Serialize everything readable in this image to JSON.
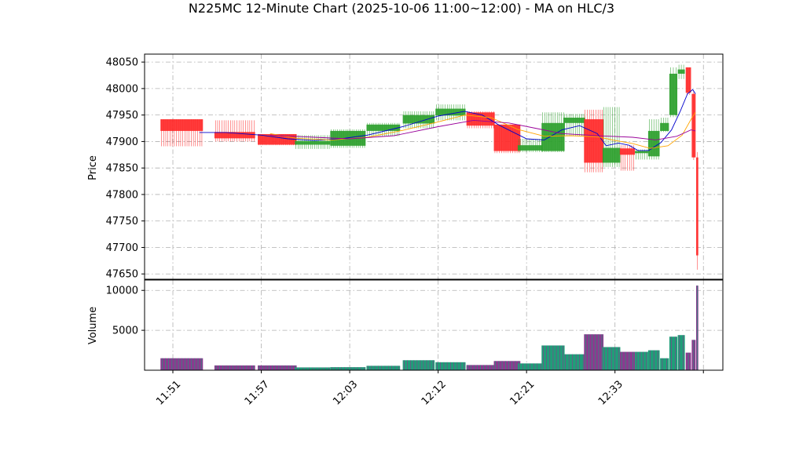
{
  "chart_data": {
    "type": "candlestick",
    "title": "N225MC 12-Minute Chart (2025-10-06 11:00~12:00) - MA on HLC/3",
    "price_panel": {
      "ylabel": "Price",
      "ylim": [
        47640,
        48065
      ],
      "yticks": [
        47650,
        47700,
        47750,
        47800,
        47850,
        47900,
        47950,
        48000,
        48050
      ],
      "grid": true
    },
    "volume_panel": {
      "ylabel": "Volume",
      "ylim": [
        0,
        11300
      ],
      "yticks": [
        5000,
        10000
      ],
      "grid": true
    },
    "x_axis": {
      "xlim": [
        -1.6,
        31.1
      ],
      "ticks": [
        {
          "x": 0,
          "label": "11:51"
        },
        {
          "x": 5,
          "label": "11:57"
        },
        {
          "x": 10,
          "label": "12:03"
        },
        {
          "x": 15,
          "label": "12:12"
        },
        {
          "x": 20,
          "label": "12:21"
        },
        {
          "x": 25,
          "label": "12:33"
        },
        {
          "x": 30,
          "label": ""
        }
      ]
    },
    "colors": {
      "up": "#2ca02c",
      "down": "#ff2a2a",
      "volume_up": "#1f9e78",
      "volume_down": "#8b3a8f",
      "ma_short": "#0000cc",
      "ma_mid": "#ffa500",
      "ma_long": "#990099",
      "grid": "#b0b0b0"
    },
    "candles": [
      {
        "x": 0.5,
        "w": 2.4,
        "open": 47942,
        "high": 47942,
        "low": 47891,
        "close": 47920,
        "volume": 1500
      },
      {
        "x": 3.5,
        "w": 2.3,
        "open": 47918,
        "high": 47940,
        "low": 47900,
        "close": 47906,
        "volume": 600
      },
      {
        "x": 5.9,
        "w": 2.2,
        "open": 47914,
        "high": 47914,
        "low": 47893,
        "close": 47894,
        "volume": 600
      },
      {
        "x": 7.9,
        "w": 2.0,
        "open": 47894,
        "high": 47912,
        "low": 47886,
        "close": 47901,
        "volume": 350
      },
      {
        "x": 9.9,
        "w": 2.0,
        "open": 47892,
        "high": 47923,
        "low": 47888,
        "close": 47920,
        "volume": 380
      },
      {
        "x": 11.9,
        "w": 1.9,
        "open": 47920,
        "high": 47935,
        "low": 47910,
        "close": 47932,
        "volume": 550
      },
      {
        "x": 13.9,
        "w": 1.8,
        "open": 47934,
        "high": 47957,
        "low": 47925,
        "close": 47950,
        "volume": 1250
      },
      {
        "x": 15.7,
        "w": 1.7,
        "open": 47949,
        "high": 47970,
        "low": 47940,
        "close": 47962,
        "volume": 1000
      },
      {
        "x": 17.4,
        "w": 1.6,
        "open": 47955,
        "high": 47957,
        "low": 47925,
        "close": 47930,
        "volume": 650
      },
      {
        "x": 18.9,
        "w": 1.5,
        "open": 47932,
        "high": 47932,
        "low": 47878,
        "close": 47882,
        "volume": 1150
      },
      {
        "x": 20.2,
        "w": 1.4,
        "open": 47883,
        "high": 47905,
        "low": 47880,
        "close": 47893,
        "volume": 850
      },
      {
        "x": 21.5,
        "w": 1.3,
        "open": 47882,
        "high": 47955,
        "low": 47880,
        "close": 47935,
        "volume": 3100
      },
      {
        "x": 22.7,
        "w": 1.2,
        "open": 47935,
        "high": 47952,
        "low": 47910,
        "close": 47945,
        "volume": 2000
      },
      {
        "x": 23.8,
        "w": 1.1,
        "open": 47942,
        "high": 47960,
        "low": 47842,
        "close": 47860,
        "volume": 4500
      },
      {
        "x": 24.8,
        "w": 1.0,
        "open": 47860,
        "high": 47965,
        "low": 47852,
        "close": 47888,
        "volume": 2900
      },
      {
        "x": 25.7,
        "w": 0.85,
        "open": 47887,
        "high": 47893,
        "low": 47845,
        "close": 47875,
        "volume": 2300
      },
      {
        "x": 26.5,
        "w": 0.75,
        "open": 47878,
        "high": 47885,
        "low": 47866,
        "close": 47882,
        "volume": 2300
      },
      {
        "x": 27.2,
        "w": 0.65,
        "open": 47872,
        "high": 47942,
        "low": 47866,
        "close": 47920,
        "volume": 2500
      },
      {
        "x": 27.8,
        "w": 0.5,
        "open": 47920,
        "high": 47945,
        "low": 47918,
        "close": 47935,
        "volume": 1500
      },
      {
        "x": 28.3,
        "w": 0.45,
        "open": 47950,
        "high": 48040,
        "low": 47946,
        "close": 48028,
        "volume": 4200
      },
      {
        "x": 28.75,
        "w": 0.4,
        "open": 48028,
        "high": 48045,
        "low": 48018,
        "close": 48036,
        "volume": 4400
      },
      {
        "x": 29.15,
        "w": 0.3,
        "open": 48040,
        "high": 48040,
        "low": 47988,
        "close": 47992,
        "volume": 2200
      },
      {
        "x": 29.45,
        "w": 0.22,
        "open": 47990,
        "high": 47995,
        "low": 47865,
        "close": 47870,
        "volume": 3800
      },
      {
        "x": 29.65,
        "w": 0.12,
        "open": 47870,
        "high": 47880,
        "low": 47658,
        "close": 47685,
        "volume": 10600
      }
    ],
    "series": [
      {
        "values": [
          [
            1.5,
            47917
          ],
          [
            3,
            47917
          ],
          [
            5,
            47912
          ],
          [
            6.5,
            47905
          ],
          [
            8,
            47902
          ],
          [
            9.5,
            47905
          ],
          [
            11,
            47912
          ],
          [
            13,
            47928
          ],
          [
            15,
            47948
          ],
          [
            16.5,
            47957
          ],
          [
            17.5,
            47950
          ],
          [
            18.5,
            47930
          ],
          [
            20,
            47905
          ],
          [
            21,
            47903
          ],
          [
            22,
            47922
          ],
          [
            23,
            47930
          ],
          [
            24,
            47915
          ],
          [
            24.5,
            47892
          ],
          [
            25.2,
            47897
          ],
          [
            25.8,
            47893
          ],
          [
            26.3,
            47883
          ],
          [
            26.9,
            47883
          ],
          [
            27.6,
            47898
          ],
          [
            28.2,
            47922
          ],
          [
            28.7,
            47958
          ],
          [
            29.1,
            47990
          ],
          [
            29.4,
            47998
          ],
          [
            29.55,
            47990
          ]
        ]
      },
      {
        "values": [
          [
            5.5,
            47915
          ],
          [
            7,
            47906
          ],
          [
            9,
            47903
          ],
          [
            11,
            47908
          ],
          [
            13,
            47921
          ],
          [
            15,
            47937
          ],
          [
            16.5,
            47950
          ],
          [
            18,
            47945
          ],
          [
            19.5,
            47923
          ],
          [
            21,
            47910
          ],
          [
            22.5,
            47911
          ],
          [
            24,
            47909
          ],
          [
            25,
            47902
          ],
          [
            26,
            47896
          ],
          [
            27,
            47887
          ],
          [
            28,
            47892
          ],
          [
            28.8,
            47912
          ],
          [
            29.3,
            47942
          ],
          [
            29.55,
            47955
          ]
        ]
      },
      {
        "values": [
          [
            5.5,
            47912
          ],
          [
            8,
            47908
          ],
          [
            10,
            47905
          ],
          [
            12.5,
            47911
          ],
          [
            15,
            47928
          ],
          [
            17,
            47940
          ],
          [
            19,
            47935
          ],
          [
            20.5,
            47925
          ],
          [
            22,
            47915
          ],
          [
            24,
            47911
          ],
          [
            26,
            47908
          ],
          [
            27.3,
            47903
          ],
          [
            28.5,
            47910
          ],
          [
            29.3,
            47922
          ],
          [
            29.55,
            47920
          ]
        ]
      }
    ]
  }
}
